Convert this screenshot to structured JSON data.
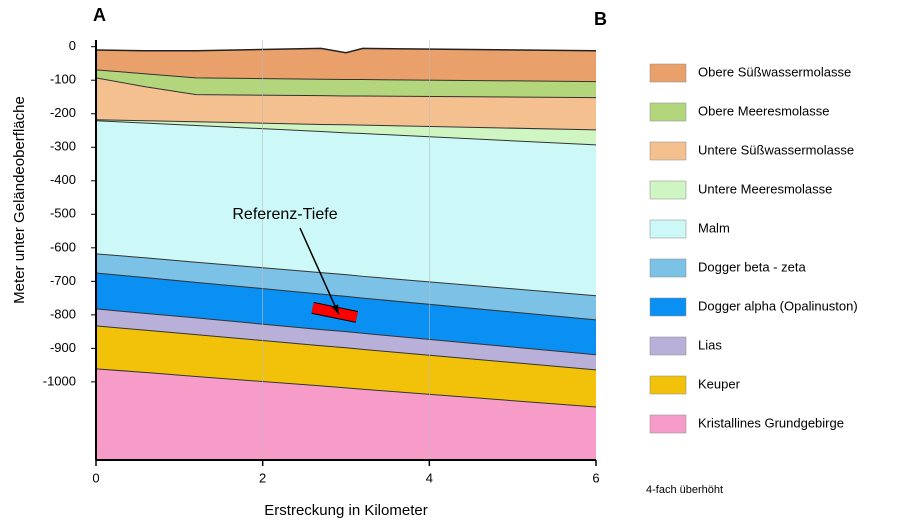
{
  "chart_data": {
    "type": "geologic-section",
    "corner_left": "A",
    "corner_right": "B",
    "xlabel": "Erstreckung in Kilometer",
    "ylabel": "Meter unter Geländeoberfläche",
    "note": "4-fach überhöht",
    "x": [
      0,
      0.6,
      1.2,
      2.7,
      3,
      3.2,
      6
    ],
    "top_values": [
      -10,
      -12,
      -12,
      -5,
      -18,
      -5,
      -12
    ],
    "series": [
      {
        "name": "Obere Süßwassermolasse",
        "color": "#e9a06a",
        "values": [
          -69,
          -81,
          -93,
          -97,
          -98,
          -98,
          -104
        ]
      },
      {
        "name": "Obere Meeresmolasse",
        "color": "#b3d67c",
        "values": [
          -93,
          -120,
          -143,
          -146,
          -147,
          -147,
          -152
        ]
      },
      {
        "name": "Untere Süßwassermolasse",
        "color": "#f4c08f",
        "values": [
          -218,
          -221,
          -224,
          -232,
          -233,
          -234,
          -248
        ]
      },
      {
        "name": "Untere Meeresmolasse",
        "color": "#cef5c2",
        "values": [
          -221,
          -228,
          -235,
          -253,
          -257,
          -259,
          -293
        ]
      },
      {
        "name": "Malm",
        "color": "#ccf8f8",
        "values": [
          -618,
          -630,
          -643,
          -674,
          -680,
          -685,
          -743
        ]
      },
      {
        "name": "Dogger beta - zeta",
        "color": "#7cc2e6",
        "values": [
          -675,
          -689,
          -703,
          -738,
          -745,
          -750,
          -815
        ]
      },
      {
        "name": "Dogger alpha (Opalinuston)",
        "color": "#0a8ff2",
        "values": [
          -782,
          -796,
          -809,
          -844,
          -850,
          -855,
          -919
        ]
      },
      {
        "name": "Lias",
        "color": "#b8b0d8",
        "values": [
          -833,
          -846,
          -859,
          -892,
          -898,
          -903,
          -964
        ]
      },
      {
        "name": "Keuper",
        "color": "#f2c10a",
        "values": [
          -961,
          -972,
          -984,
          -1012,
          -1018,
          -1022,
          -1075
        ]
      },
      {
        "name": "Kristallines Grundgebirge",
        "color": "#f79cc8"
      }
    ],
    "annotation": {
      "text": "Referenz-Tiefe",
      "x": [
        2.6,
        3.13
      ],
      "values": [
        -779,
        -806
      ],
      "color": "#ff0000"
    },
    "xlim": [
      0,
      6
    ],
    "xticks": [
      0,
      2,
      4,
      6
    ],
    "ylim": [
      -1233,
      20
    ],
    "yticks": [
      0,
      -100,
      -200,
      -300,
      -400,
      -500,
      -600,
      -700,
      -800,
      -900,
      -1000
    ],
    "grid": "x"
  }
}
